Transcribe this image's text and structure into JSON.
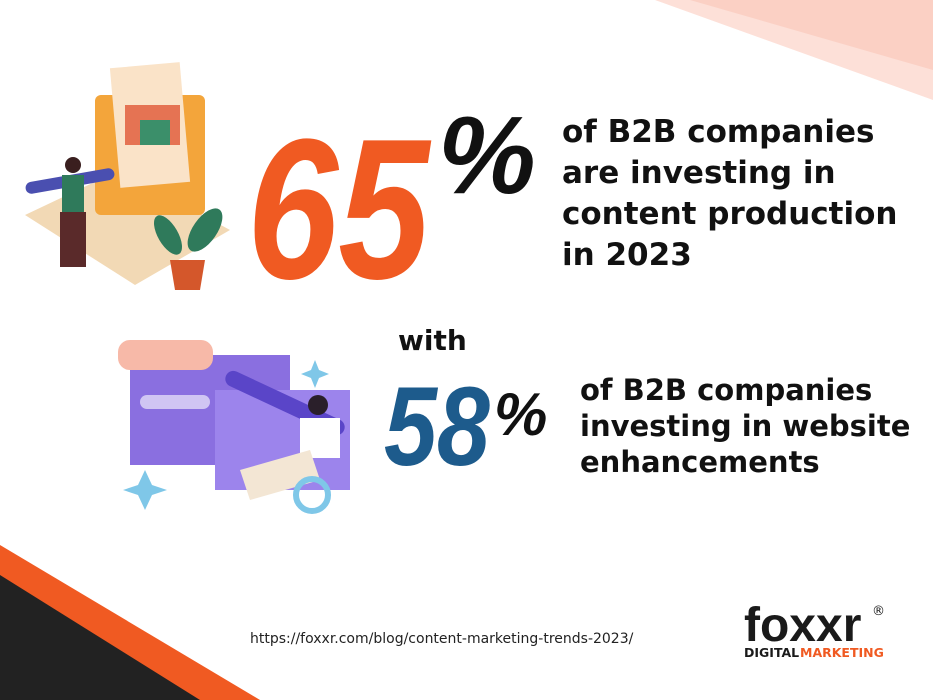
{
  "stat1": {
    "number": "65",
    "percent": "%",
    "text": [
      "of B2B companies",
      "are investing in",
      "content production",
      "in 2023"
    ]
  },
  "connector": "with",
  "stat2": {
    "number": "58",
    "percent": "%",
    "text": [
      "of B2B companies",
      "investing in website",
      "enhancements"
    ]
  },
  "footer": {
    "url": "https://foxxr.com/blog/content-marketing-trends-2023/"
  },
  "logo": {
    "name": "foxxr",
    "registered": "®",
    "tagline_1": "DIGITAL",
    "tagline_2": "MARKETING"
  }
}
